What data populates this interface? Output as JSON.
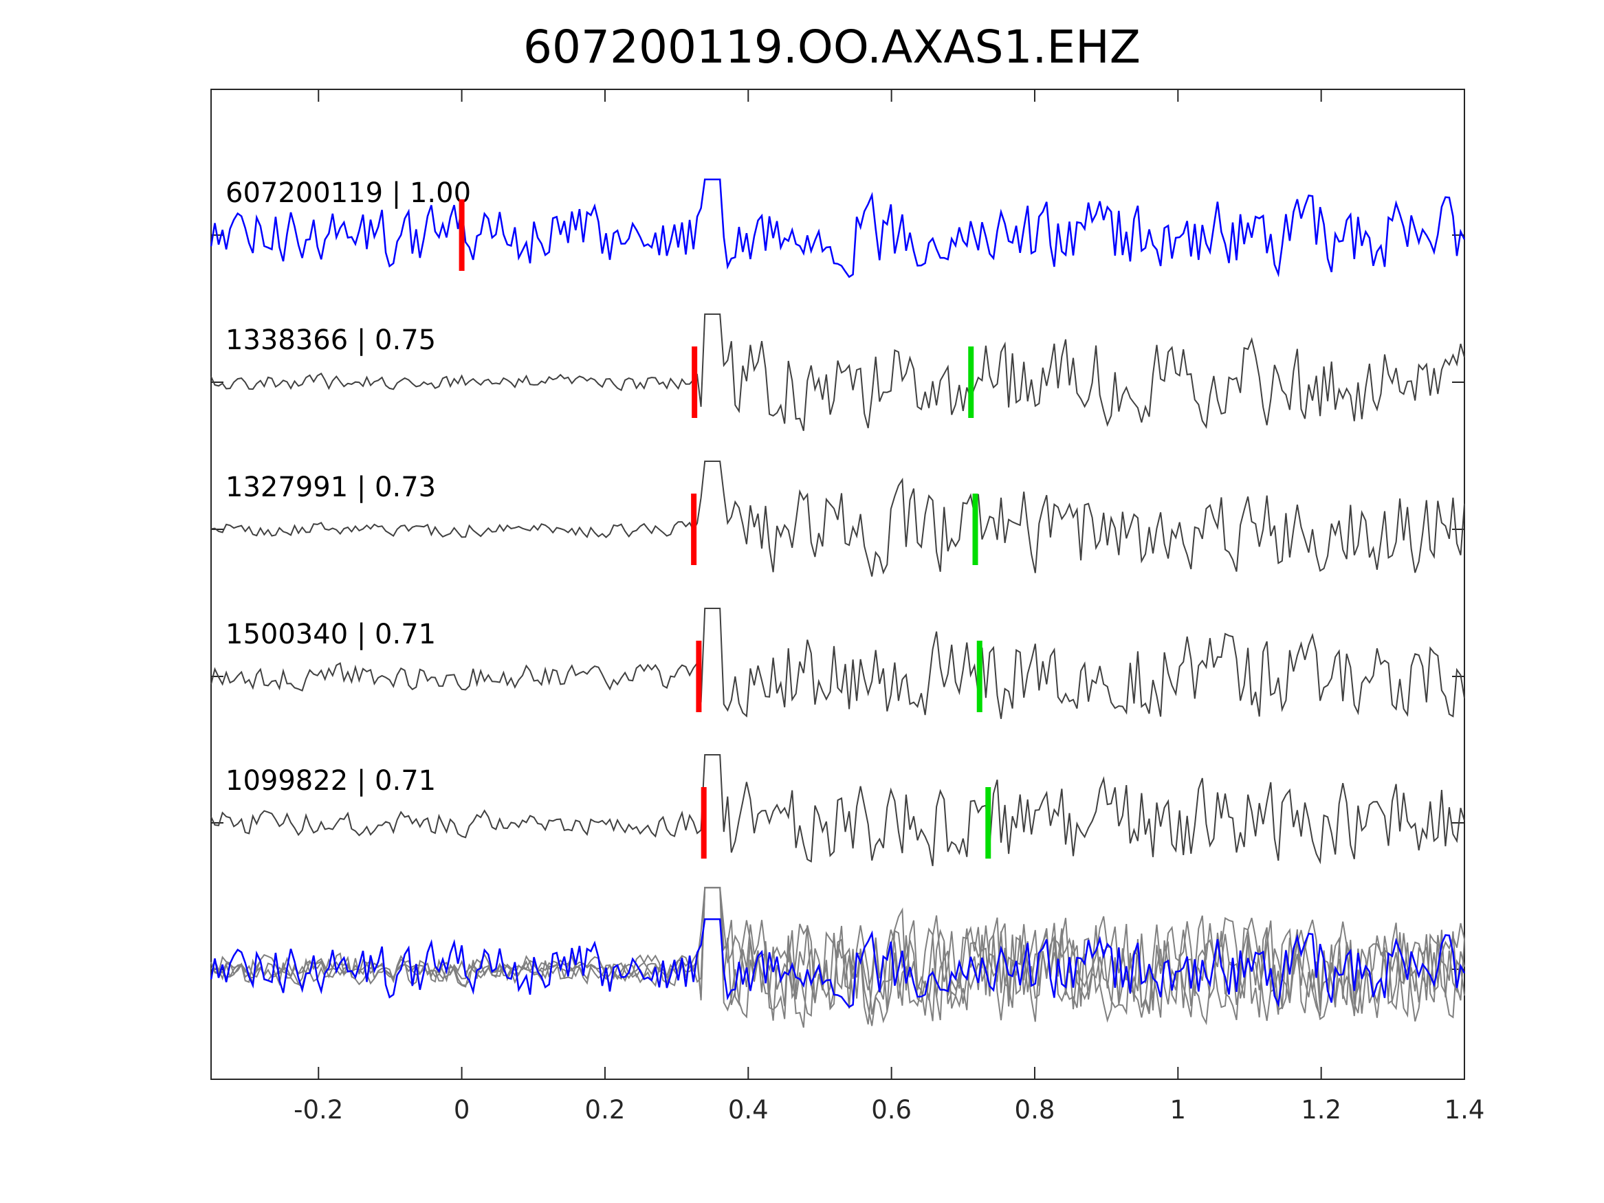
{
  "chart_data": {
    "type": "line",
    "title": "607200119.OO.AXAS1.EHZ",
    "xlabel": "",
    "ylabel": "",
    "xlim": [
      -0.35,
      1.4
    ],
    "xticks": [
      -0.2,
      0,
      0.2,
      0.4,
      0.6,
      0.8,
      1,
      1.2,
      1.4
    ],
    "xtick_labels": [
      "-0.2",
      "0",
      "0.2",
      "0.4",
      "0.6",
      "0.8",
      "1",
      "1.2",
      "1.4"
    ],
    "grid": false,
    "traces": [
      {
        "label": "607200119 | 1.00",
        "id": "607200119",
        "cc": 1.0,
        "color": "#0000ff",
        "red_pick": 0.0,
        "green_pick": null,
        "onset": 0.33
      },
      {
        "label": "1338366 | 0.75",
        "id": "1338366",
        "cc": 0.75,
        "color": "#404040",
        "red_pick": 0.325,
        "green_pick": 0.711,
        "onset": 0.33
      },
      {
        "label": "1327991 | 0.73",
        "id": "1327991",
        "cc": 0.73,
        "color": "#404040",
        "red_pick": 0.324,
        "green_pick": 0.717,
        "onset": 0.33
      },
      {
        "label": "1500340 | 0.71",
        "id": "1500340",
        "cc": 0.71,
        "color": "#404040",
        "red_pick": 0.331,
        "green_pick": 0.723,
        "onset": 0.33
      },
      {
        "label": "1099822 | 0.71",
        "id": "1099822",
        "cc": 0.71,
        "color": "#404040",
        "red_pick": 0.338,
        "green_pick": 0.735,
        "onset": 0.33
      }
    ],
    "stack": {
      "description_color_template": "#0000ff",
      "description_color_others": "#808080"
    },
    "pick_colors": {
      "red": "#ff0000",
      "green": "#00dd00"
    }
  }
}
